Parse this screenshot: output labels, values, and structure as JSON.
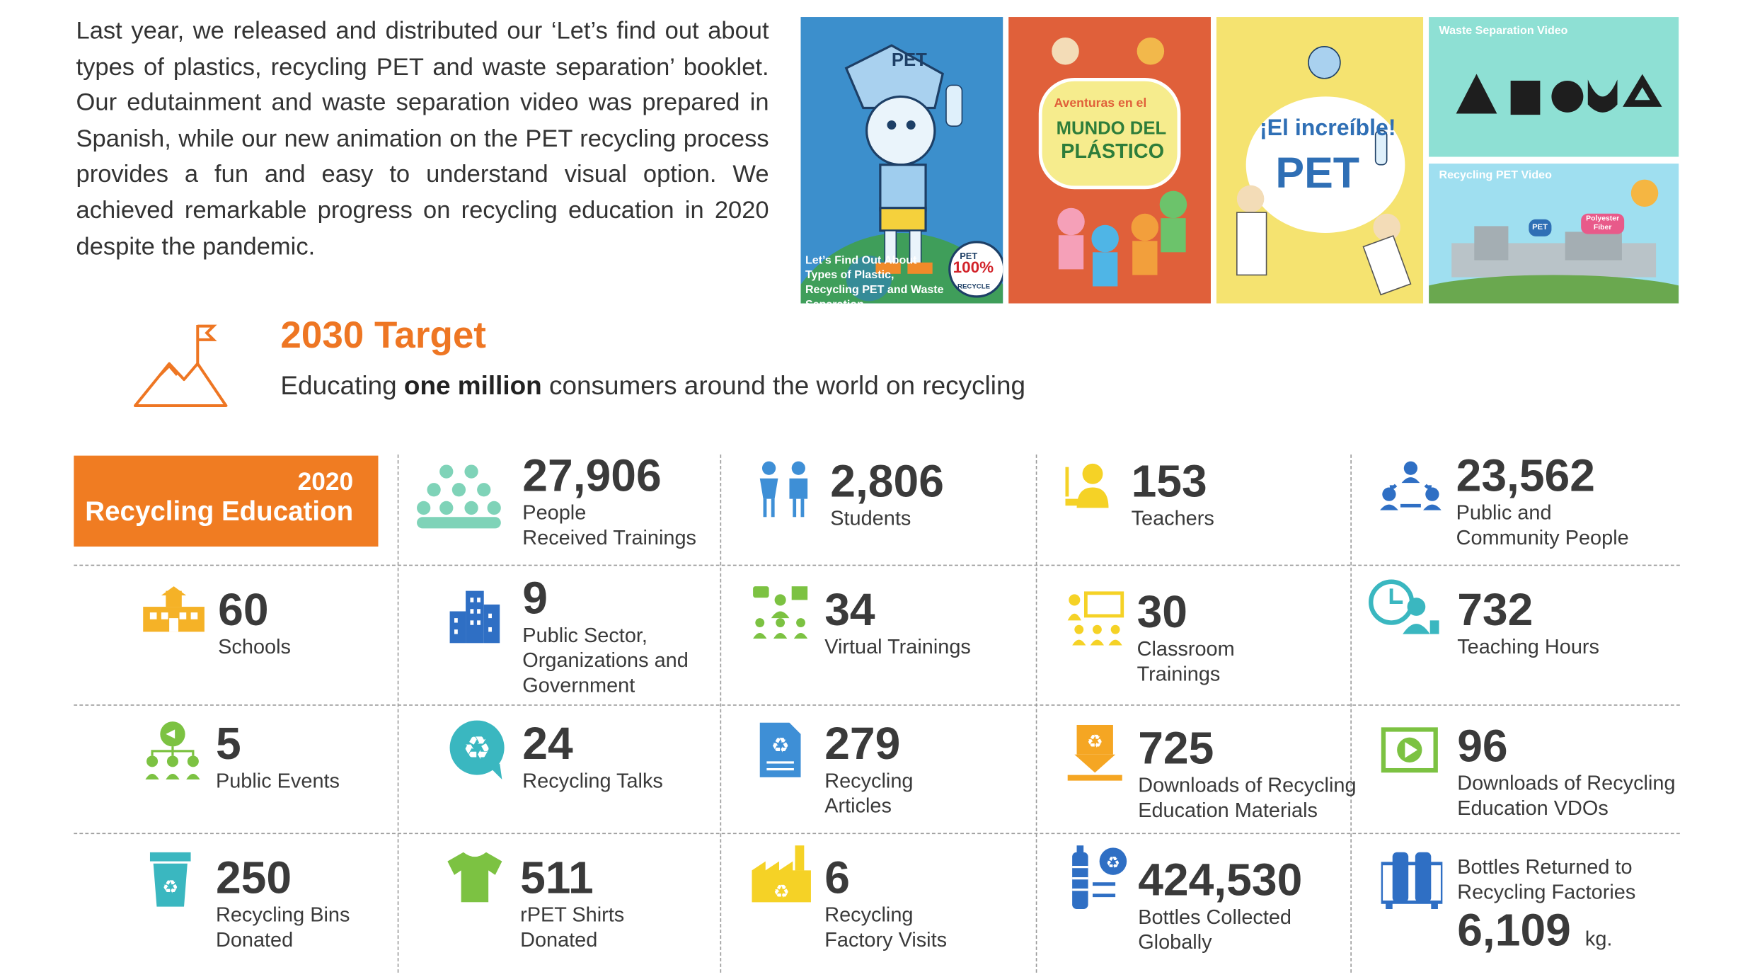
{
  "intro": "Last year, we released and distributed our ‘Let’s find out about types of plastics, recycling PET and waste separation’ booklet. Our edutainment and waste separation video was prepared in Spanish, while our new animation on the PET recycling process provides a fun and easy to understand visual option. We achieved remarkable progress on recycling education in 2020 despite the pandemic.",
  "tiles": {
    "booklet_pet_label": "PET",
    "booklet_caption": "Let’s Find Out About Types of Plastic, Recycling PET and Waste Separation",
    "booklet_badge_top": "PET",
    "booklet_badge_pct": "100%",
    "booklet_badge_bottom": "RECYCLE",
    "aventuras_line1": "Aventuras en el",
    "aventuras_line2": "MUNDO DEL",
    "aventuras_line3": "PLÁSTICO",
    "increible_line1": "¡El increíble!",
    "increible_line2": "PET",
    "waste_video_label": "Waste Separation Video",
    "recycling_video_label": "Recycling PET Video",
    "recycling_video_pet": "PET",
    "recycling_video_fiber": "Polyester Fiber"
  },
  "target": {
    "title": "2030 Target",
    "sub_before": "Educating ",
    "sub_bold": "one million",
    "sub_after": " consumers around the world on recycling"
  },
  "badge": {
    "year": "2020",
    "title": "Recycling Education"
  },
  "stats": [
    {
      "number": "27,906",
      "label": [
        "People",
        "Received Trainings"
      ]
    },
    {
      "number": "2,806",
      "label": [
        "Students"
      ]
    },
    {
      "number": "153",
      "label": [
        "Teachers"
      ]
    },
    {
      "number": "23,562",
      "label": [
        "Public and",
        "Community People"
      ]
    },
    {
      "number": "60",
      "label": [
        "Schools"
      ]
    },
    {
      "number": "9",
      "label": [
        "Public Sector,",
        "Organizations and",
        "Government"
      ]
    },
    {
      "number": "34",
      "label": [
        "Virtual Trainings"
      ]
    },
    {
      "number": "30",
      "label": [
        "Classroom",
        "Trainings"
      ]
    },
    {
      "number": "732",
      "label": [
        "Teaching Hours"
      ]
    },
    {
      "number": "5",
      "label": [
        "Public Events"
      ]
    },
    {
      "number": "24",
      "label": [
        "Recycling Talks"
      ]
    },
    {
      "number": "279",
      "label": [
        "Recycling",
        "Articles"
      ]
    },
    {
      "number": "725",
      "label": [
        "Downloads of Recycling",
        "Education Materials"
      ]
    },
    {
      "number": "96",
      "label": [
        "Downloads of Recycling",
        "Education VDOs"
      ]
    },
    {
      "number": "250",
      "label": [
        "Recycling Bins",
        "Donated"
      ]
    },
    {
      "number": "511",
      "label": [
        "rPET Shirts",
        "Donated"
      ]
    },
    {
      "number": "6",
      "label": [
        "Recycling",
        "Factory Visits"
      ]
    },
    {
      "number": "424,530",
      "label": [
        "Bottles Collected",
        "Globally"
      ]
    }
  ],
  "bottles_returned": {
    "label": [
      "Bottles Returned to",
      "Recycling Factories"
    ],
    "number": "6,109",
    "unit": "kg."
  }
}
